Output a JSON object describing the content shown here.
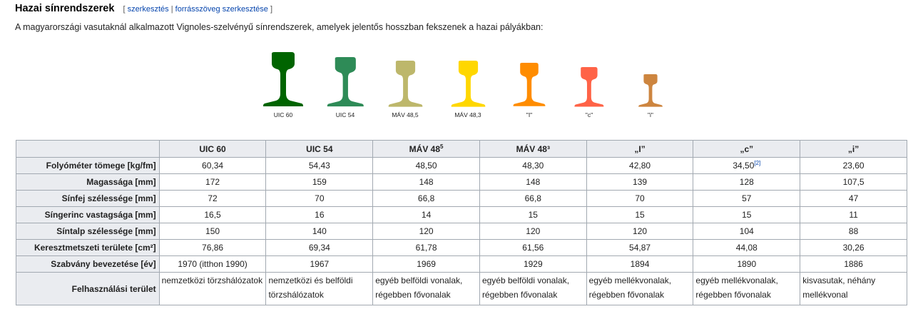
{
  "heading": {
    "title": "Hazai sínrendszerek",
    "bracket_open": "[",
    "edit": "szerkesztés",
    "sep": "|",
    "edit_source": "forrásszöveg szerkesztése",
    "bracket_close": "]"
  },
  "intro": "A magyarországi vasutaknál alkalmazott Vignoles-szelvényű sínrendszerek, amelyek jelentős hosszban fekszenek a hazai pályákban:",
  "rails": [
    {
      "label": "UIC 60",
      "color": "#006400",
      "scale": 1.0
    },
    {
      "label": "UIC 54",
      "color": "#2e8b57",
      "scale": 0.91
    },
    {
      "label": "MÁV 48,5",
      "color": "#bdb76b",
      "scale": 0.85
    },
    {
      "label": "MÁV 48,3",
      "color": "#ffd700",
      "scale": 0.85
    },
    {
      "label": "\"I\"",
      "color": "#ff8c00",
      "scale": 0.8
    },
    {
      "label": "\"c\"",
      "color": "#ff6347",
      "scale": 0.73
    },
    {
      "label": "\"i\"",
      "color": "#cd853f",
      "scale": 0.6
    }
  ],
  "table": {
    "columns": [
      "UIC 60",
      "UIC 54",
      "MÁV 48",
      "MÁV 48³",
      "„I”",
      "„c”",
      "„i”"
    ],
    "col3_sup": "5",
    "ref": "[2]",
    "rows": [
      {
        "label": "Folyóméter tömege [kg/fm]",
        "values": [
          "60,34",
          "54,43",
          "48,50",
          "48,30",
          "42,80",
          "34,50",
          "23,60"
        ]
      },
      {
        "label": "Magassága [mm]",
        "values": [
          "172",
          "159",
          "148",
          "148",
          "139",
          "128",
          "107,5"
        ]
      },
      {
        "label": "Sínfej szélessége [mm]",
        "values": [
          "72",
          "70",
          "66,8",
          "66,8",
          "70",
          "57",
          "47"
        ]
      },
      {
        "label": "Síngerinc vastagsága [mm]",
        "values": [
          "16,5",
          "16",
          "14",
          "15",
          "15",
          "15",
          "11"
        ]
      },
      {
        "label": "Síntalp szélessége [mm]",
        "values": [
          "150",
          "140",
          "120",
          "120",
          "120",
          "104",
          "88"
        ]
      },
      {
        "label": "Keresztmetszeti területe [cm²]",
        "values": [
          "76,86",
          "69,34",
          "61,78",
          "61,56",
          "54,87",
          "44,08",
          "30,26"
        ]
      },
      {
        "label": "Szabvány bevezetése [év]",
        "values": [
          "1970 (itthon 1990)",
          "1967",
          "1969",
          "1929",
          "1894",
          "1890",
          "1886"
        ]
      },
      {
        "label": "Felhasználási terület",
        "values": [
          "nemzetközi törzshálózatok",
          "nemzetközi és belföldi törzshálózatok",
          "egyéb belföldi vonalak, régebben fővonalak",
          "egyéb belföldi vonalak, régebben fővonalak",
          "egyéb mellékvonalak, régebben fővonalak",
          "egyéb mellékvonalak, régebben fővonalak",
          "kisvasutak, néhány mellékvonal"
        ]
      }
    ]
  }
}
